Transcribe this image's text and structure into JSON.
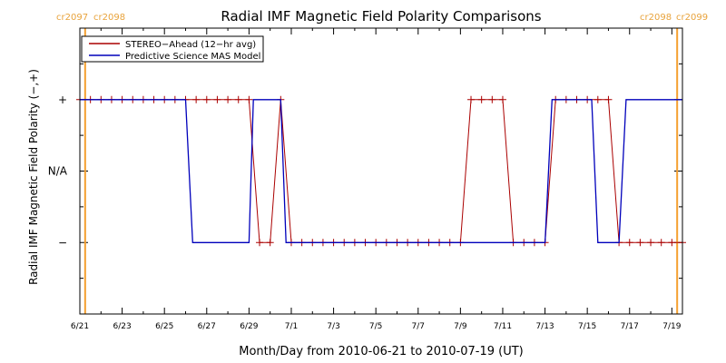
{
  "chart_data": {
    "type": "line",
    "title": "Radial IMF Magnetic Field Polarity Comparisons",
    "xlabel": "Month/Day from 2010-06-21 to 2010-07-19 (UT)",
    "ylabel": "Radial IMF Magnetic Field Polarity (−,+)",
    "x_unit": "date (UT)",
    "xlim": [
      "2010-06-21T00:00",
      "2010-07-19T12:00"
    ],
    "x_tick_labels": [
      "6/21",
      "6/23",
      "6/25",
      "6/27",
      "6/29",
      "7/1",
      "7/3",
      "7/5",
      "7/7",
      "7/9",
      "7/11",
      "7/13",
      "7/15",
      "7/17",
      "7/19"
    ],
    "x_tick_dates": [
      "2010-06-21",
      "2010-06-23",
      "2010-06-25",
      "2010-06-27",
      "2010-06-29",
      "2010-07-01",
      "2010-07-03",
      "2010-07-05",
      "2010-07-07",
      "2010-07-09",
      "2010-07-11",
      "2010-07-13",
      "2010-07-15",
      "2010-07-17",
      "2010-07-19"
    ],
    "y_tick_labels": [
      {
        "label": "+",
        "value": 1
      },
      {
        "label": "N/A",
        "value": 0
      },
      {
        "label": "−",
        "value": -1
      }
    ],
    "ylim": [
      -2,
      2
    ],
    "legend": {
      "placement": "top-left",
      "entries": [
        {
          "name": "STEREO−Ahead (12−hr avg)",
          "color": "#aa0000"
        },
        {
          "name": "Predictive Science MAS Model",
          "color": "#0000bb"
        }
      ]
    },
    "carrington_markers": [
      {
        "x": "2010-06-21T06:00",
        "left_label": "cr2097",
        "right_label": "cr2098",
        "color": "#f5a030"
      },
      {
        "x": "2010-07-19T06:00",
        "left_label": "cr2098",
        "right_label": "cr2099",
        "color": "#f5a030"
      }
    ],
    "series": [
      {
        "name": "STEREO−Ahead (12−hr avg)",
        "color": "#aa0000",
        "marker": "plus",
        "x": [
          "2010-06-21T00:00",
          "2010-06-21T12:00",
          "2010-06-22T00:00",
          "2010-06-22T12:00",
          "2010-06-23T00:00",
          "2010-06-23T12:00",
          "2010-06-24T00:00",
          "2010-06-24T12:00",
          "2010-06-25T00:00",
          "2010-06-25T12:00",
          "2010-06-26T00:00",
          "2010-06-26T12:00",
          "2010-06-27T00:00",
          "2010-06-27T12:00",
          "2010-06-28T00:00",
          "2010-06-28T12:00",
          "2010-06-29T00:00",
          "2010-06-29T12:00",
          "2010-06-30T00:00",
          "2010-06-30T12:00",
          "2010-07-01T00:00",
          "2010-07-01T12:00",
          "2010-07-02T00:00",
          "2010-07-02T12:00",
          "2010-07-03T00:00",
          "2010-07-03T12:00",
          "2010-07-04T00:00",
          "2010-07-04T12:00",
          "2010-07-05T00:00",
          "2010-07-05T12:00",
          "2010-07-06T00:00",
          "2010-07-06T12:00",
          "2010-07-07T00:00",
          "2010-07-07T12:00",
          "2010-07-08T00:00",
          "2010-07-08T12:00",
          "2010-07-09T00:00",
          "2010-07-09T12:00",
          "2010-07-10T00:00",
          "2010-07-10T12:00",
          "2010-07-11T00:00",
          "2010-07-11T12:00",
          "2010-07-12T00:00",
          "2010-07-12T12:00",
          "2010-07-13T00:00",
          "2010-07-13T12:00",
          "2010-07-14T00:00",
          "2010-07-14T12:00",
          "2010-07-15T00:00",
          "2010-07-15T12:00",
          "2010-07-16T00:00",
          "2010-07-16T12:00",
          "2010-07-17T00:00",
          "2010-07-17T12:00",
          "2010-07-18T00:00",
          "2010-07-18T12:00",
          "2010-07-19T00:00",
          "2010-07-19T12:00"
        ],
        "y": [
          1,
          1,
          1,
          1,
          1,
          1,
          1,
          1,
          1,
          1,
          1,
          1,
          1,
          1,
          1,
          1,
          1,
          -1,
          -1,
          1,
          -1,
          -1,
          -1,
          -1,
          -1,
          -1,
          -1,
          -1,
          -1,
          -1,
          -1,
          -1,
          -1,
          -1,
          -1,
          -1,
          -1,
          1,
          1,
          1,
          1,
          -1,
          -1,
          -1,
          -1,
          1,
          1,
          1,
          1,
          1,
          1,
          -1,
          -1,
          -1,
          -1,
          -1,
          -1,
          -1
        ]
      },
      {
        "name": "Predictive Science MAS Model",
        "color": "#0000bb",
        "x": [
          "2010-06-21T00:00",
          "2010-06-26T00:00",
          "2010-06-26T08:00",
          "2010-06-29T00:00",
          "2010-06-29T05:00",
          "2010-06-30T12:00",
          "2010-06-30T18:00",
          "2010-07-13T00:00",
          "2010-07-13T08:00",
          "2010-07-15T05:00",
          "2010-07-15T12:00",
          "2010-07-16T12:00",
          "2010-07-16T20:00",
          "2010-07-19T12:00"
        ],
        "y": [
          1,
          1,
          -1,
          -1,
          1,
          1,
          -1,
          -1,
          1,
          1,
          -1,
          -1,
          1,
          1
        ]
      }
    ]
  }
}
